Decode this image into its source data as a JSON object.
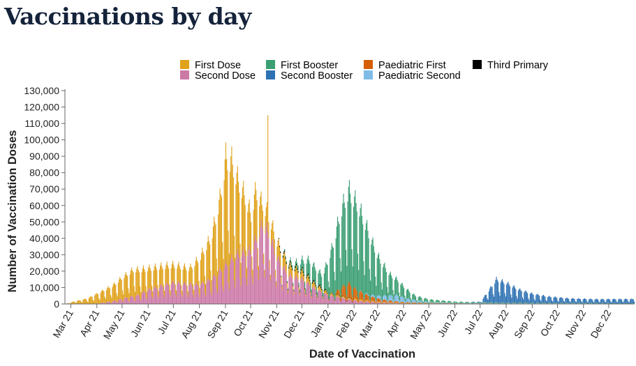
{
  "page": {
    "title": "Vaccinations by day"
  },
  "colors": {
    "first_dose": "#e0a21a",
    "second_dose": "#cc79a7",
    "first_booster": "#3a9e72",
    "second_booster": "#2f72b3",
    "paediatric_first": "#d55e00",
    "paediatric_second": "#7fbce8",
    "third_primary": "#000000",
    "axis": "#666666"
  },
  "chart_data": {
    "type": "bar",
    "stacked": true,
    "xlabel": "Date of Vaccination",
    "ylabel": "Number of Vaccination Doses",
    "ylim": [
      0,
      130000
    ],
    "y_ticks": [
      "0",
      "10,000",
      "20,000",
      "30,000",
      "40,000",
      "50,000",
      "60,000",
      "70,000",
      "80,000",
      "90,000",
      "100,000",
      "110,000",
      "120,000",
      "130,000"
    ],
    "x_range": [
      "2021-02-22",
      "2022-12-31"
    ],
    "x_ticks": [
      {
        "label": "Mar 21",
        "date": "2021-03-01"
      },
      {
        "label": "Apr 21",
        "date": "2021-04-01"
      },
      {
        "label": "May 21",
        "date": "2021-05-01"
      },
      {
        "label": "Jun 21",
        "date": "2021-06-01"
      },
      {
        "label": "Jul 21",
        "date": "2021-07-01"
      },
      {
        "label": "Aug 21",
        "date": "2021-08-01"
      },
      {
        "label": "Sep 21",
        "date": "2021-09-01"
      },
      {
        "label": "Oct 21",
        "date": "2021-10-01"
      },
      {
        "label": "Nov 21",
        "date": "2021-11-01"
      },
      {
        "label": "Dec 21",
        "date": "2021-12-01"
      },
      {
        "label": "Jan 22",
        "date": "2022-01-01"
      },
      {
        "label": "Feb 22",
        "date": "2022-02-01"
      },
      {
        "label": "Mar 22",
        "date": "2022-03-01"
      },
      {
        "label": "Apr 22",
        "date": "2022-04-01"
      },
      {
        "label": "May 22",
        "date": "2022-05-01"
      },
      {
        "label": "Jun 22",
        "date": "2022-06-01"
      },
      {
        "label": "Jul 22",
        "date": "2022-07-01"
      },
      {
        "label": "Aug 22",
        "date": "2022-08-01"
      },
      {
        "label": "Sep 22",
        "date": "2022-09-01"
      },
      {
        "label": "Oct 22",
        "date": "2022-10-01"
      },
      {
        "label": "Nov 22",
        "date": "2022-11-01"
      },
      {
        "label": "Dec 22",
        "date": "2022-12-01"
      }
    ],
    "legend": {
      "placement": "top"
    },
    "series": [
      {
        "key": "first_dose",
        "name": "First Dose",
        "profile": [
          [
            "2021-02-22",
            0
          ],
          [
            "2021-03-01",
            1000
          ],
          [
            "2021-03-20",
            3000
          ],
          [
            "2021-04-01",
            5500
          ],
          [
            "2021-04-20",
            9000
          ],
          [
            "2021-05-01",
            12000
          ],
          [
            "2021-05-15",
            15000
          ],
          [
            "2021-06-01",
            12000
          ],
          [
            "2021-06-15",
            11000
          ],
          [
            "2021-07-01",
            10000
          ],
          [
            "2021-07-20",
            9000
          ],
          [
            "2021-08-01",
            15000
          ],
          [
            "2021-08-15",
            24000
          ],
          [
            "2021-08-25",
            40000
          ],
          [
            "2021-09-01",
            60000
          ],
          [
            "2021-09-08",
            55000
          ],
          [
            "2021-09-15",
            42000
          ],
          [
            "2021-09-25",
            30000
          ],
          [
            "2021-10-01",
            20000
          ],
          [
            "2021-10-07",
            28000
          ],
          [
            "2021-10-14",
            12000
          ],
          [
            "2021-10-21",
            10000
          ],
          [
            "2021-11-01",
            9000
          ],
          [
            "2021-11-15",
            5500
          ],
          [
            "2021-12-01",
            4000
          ],
          [
            "2021-12-15",
            2500
          ],
          [
            "2022-01-01",
            1200
          ],
          [
            "2022-02-01",
            900
          ],
          [
            "2022-03-01",
            400
          ],
          [
            "2022-04-01",
            200
          ],
          [
            "2022-06-01",
            100
          ],
          [
            "2022-12-31",
            50
          ]
        ],
        "spikes": [
          [
            "2021-10-21",
            115000
          ]
        ]
      },
      {
        "key": "second_dose",
        "name": "Second Dose",
        "profile": [
          [
            "2021-02-22",
            0
          ],
          [
            "2021-03-20",
            0
          ],
          [
            "2021-04-01",
            300
          ],
          [
            "2021-04-20",
            1500
          ],
          [
            "2021-05-01",
            3000
          ],
          [
            "2021-05-20",
            5000
          ],
          [
            "2021-06-01",
            8000
          ],
          [
            "2021-06-15",
            10000
          ],
          [
            "2021-07-01",
            12000
          ],
          [
            "2021-07-20",
            11000
          ],
          [
            "2021-08-01",
            11000
          ],
          [
            "2021-08-15",
            14000
          ],
          [
            "2021-09-01",
            22000
          ],
          [
            "2021-09-15",
            28000
          ],
          [
            "2021-10-01",
            30000
          ],
          [
            "2021-10-15",
            45000
          ],
          [
            "2021-10-22",
            40000
          ],
          [
            "2021-11-01",
            26000
          ],
          [
            "2021-11-15",
            16000
          ],
          [
            "2021-12-01",
            14000
          ],
          [
            "2021-12-15",
            9000
          ],
          [
            "2022-01-01",
            5000
          ],
          [
            "2022-02-01",
            2000
          ],
          [
            "2022-03-01",
            800
          ],
          [
            "2022-04-01",
            300
          ],
          [
            "2022-06-01",
            100
          ],
          [
            "2022-12-31",
            30
          ]
        ],
        "spikes": []
      },
      {
        "key": "first_booster",
        "name": "First Booster",
        "profile": [
          [
            "2021-02-22",
            0
          ],
          [
            "2021-11-05",
            0
          ],
          [
            "2021-11-25",
            3000
          ],
          [
            "2021-12-10",
            10000
          ],
          [
            "2021-12-25",
            7000
          ],
          [
            "2022-01-05",
            25000
          ],
          [
            "2022-01-15",
            42000
          ],
          [
            "2022-01-25",
            52000
          ],
          [
            "2022-02-05",
            48000
          ],
          [
            "2022-02-15",
            38000
          ],
          [
            "2022-03-01",
            22000
          ],
          [
            "2022-03-15",
            12000
          ],
          [
            "2022-04-01",
            6000
          ],
          [
            "2022-04-15",
            2500
          ],
          [
            "2022-05-01",
            1500
          ],
          [
            "2022-06-01",
            700
          ],
          [
            "2022-07-01",
            500
          ],
          [
            "2022-08-01",
            300
          ],
          [
            "2022-12-31",
            200
          ]
        ],
        "spikes": []
      },
      {
        "key": "second_booster",
        "name": "Second Booster",
        "profile": [
          [
            "2021-02-22",
            0
          ],
          [
            "2022-06-20",
            0
          ],
          [
            "2022-07-01",
            200
          ],
          [
            "2022-07-10",
            6000
          ],
          [
            "2022-07-20",
            13000
          ],
          [
            "2022-08-01",
            11000
          ],
          [
            "2022-08-15",
            7500
          ],
          [
            "2022-09-01",
            5000
          ],
          [
            "2022-09-20",
            3500
          ],
          [
            "2022-10-15",
            2500
          ],
          [
            "2022-11-15",
            2200
          ],
          [
            "2022-12-31",
            2400
          ]
        ],
        "spikes": []
      },
      {
        "key": "paediatric_first",
        "name": "Paediatric First",
        "profile": [
          [
            "2021-02-22",
            0
          ],
          [
            "2022-01-08",
            0
          ],
          [
            "2022-01-15",
            4000
          ],
          [
            "2022-01-25",
            8000
          ],
          [
            "2022-02-05",
            5000
          ],
          [
            "2022-02-20",
            2500
          ],
          [
            "2022-03-10",
            1200
          ],
          [
            "2022-04-01",
            500
          ],
          [
            "2022-05-01",
            200
          ],
          [
            "2022-12-31",
            50
          ]
        ],
        "spikes": []
      },
      {
        "key": "paediatric_second",
        "name": "Paediatric Second",
        "profile": [
          [
            "2021-02-22",
            0
          ],
          [
            "2022-02-05",
            0
          ],
          [
            "2022-02-20",
            800
          ],
          [
            "2022-03-10",
            2500
          ],
          [
            "2022-03-25",
            3500
          ],
          [
            "2022-04-10",
            1500
          ],
          [
            "2022-05-01",
            500
          ],
          [
            "2022-06-01",
            200
          ],
          [
            "2022-12-31",
            30
          ]
        ],
        "spikes": []
      },
      {
        "key": "third_primary",
        "name": "Third Primary",
        "profile": [
          [
            "2021-02-22",
            0
          ],
          [
            "2021-11-01",
            0
          ],
          [
            "2021-11-05",
            900
          ],
          [
            "2021-12-25",
            700
          ],
          [
            "2022-01-05",
            200
          ],
          [
            "2022-02-01",
            0
          ],
          [
            "2022-12-31",
            0
          ]
        ],
        "spikes": []
      }
    ],
    "legend_order": [
      "first_dose",
      "first_booster",
      "paediatric_first",
      "third_primary",
      "second_dose",
      "second_booster",
      "paediatric_second"
    ]
  }
}
